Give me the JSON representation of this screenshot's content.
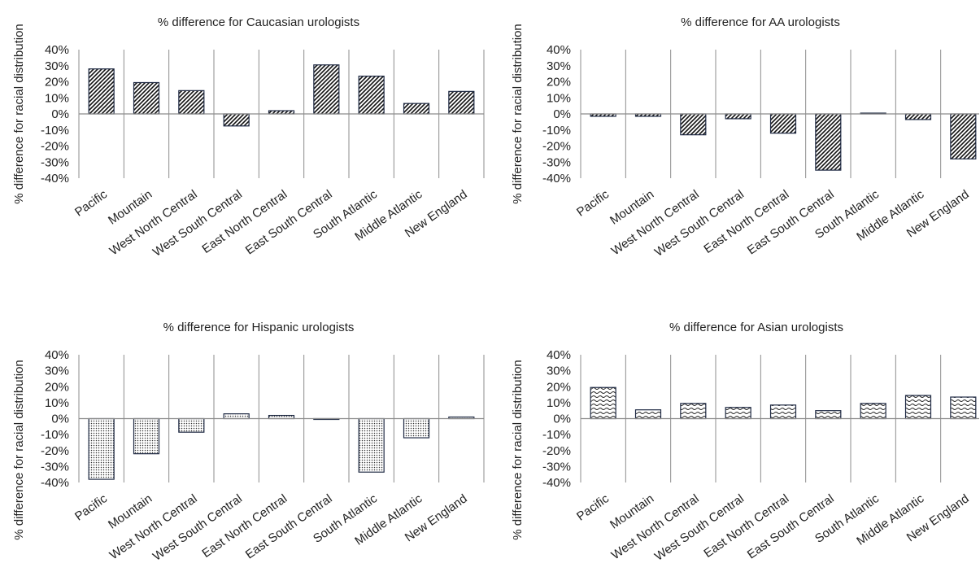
{
  "chart_data": [
    {
      "type": "bar",
      "title": "% difference for Caucasian urologists",
      "ylabel": "% difference for racial distribution",
      "categories": [
        "Pacific",
        "Mountain",
        "West North Central",
        "West South Central",
        "East North Central",
        "East South Central",
        "South Atlantic",
        "Middle Atlantic",
        "New England"
      ],
      "values": [
        28,
        19.5,
        14.5,
        -7.5,
        2,
        30.5,
        23.5,
        6.5,
        14
      ],
      "yticks": [
        "40%",
        "30%",
        "20%",
        "10%",
        "0%",
        "-10%",
        "-20%",
        "-30%",
        "-40%"
      ],
      "ylim": [
        -40,
        40
      ],
      "pattern": "diagonal-hatch",
      "grid": "vertical separators"
    },
    {
      "type": "bar",
      "title": "% difference for AA urologists",
      "ylabel": "% difference for racial distribution",
      "categories": [
        "Pacific",
        "Mountain",
        "West North Central",
        "West South Central",
        "East North Central",
        "East South Central",
        "South Atlantic",
        "Middle Atlantic",
        "New England"
      ],
      "values": [
        -1.5,
        -1.5,
        -13,
        -3,
        -12,
        -35,
        0.5,
        -3.5,
        -28
      ],
      "yticks": [
        "40%",
        "30%",
        "20%",
        "10%",
        "0%",
        "-10%",
        "-20%",
        "-30%",
        "-40%"
      ],
      "ylim": [
        -40,
        40
      ],
      "pattern": "diagonal-hatch",
      "grid": "vertical separators"
    },
    {
      "type": "bar",
      "title": "% difference for Hispanic urologists",
      "ylabel": "% difference for racial distribution",
      "categories": [
        "Pacific",
        "Mountain",
        "West North Central",
        "West South Central",
        "East North Central",
        "East South Central",
        "South Atlantic",
        "Middle Atlantic",
        "New England"
      ],
      "values": [
        -38,
        -22,
        -8.5,
        3,
        2,
        -0.5,
        -33.5,
        -12,
        1
      ],
      "yticks": [
        "40%",
        "30%",
        "20%",
        "10%",
        "0%",
        "-10%",
        "-20%",
        "-30%",
        "-40%"
      ],
      "ylim": [
        -40,
        40
      ],
      "pattern": "dots",
      "grid": "vertical separators"
    },
    {
      "type": "bar",
      "title": "% difference for Asian urologists",
      "ylabel": "% difference for racial distribution",
      "categories": [
        "Pacific",
        "Mountain",
        "West North Central",
        "West South Central",
        "East North Central",
        "East South Central",
        "South Atlantic",
        "Middle Atlantic",
        "New England"
      ],
      "values": [
        19.5,
        5.5,
        9.5,
        7,
        8.5,
        5,
        9.5,
        14.5,
        13.5
      ],
      "yticks": [
        "40%",
        "30%",
        "20%",
        "10%",
        "0%",
        "-10%",
        "-20%",
        "-30%",
        "-40%"
      ],
      "ylim": [
        -40,
        40
      ],
      "pattern": "waves",
      "grid": "vertical separators"
    }
  ],
  "colors": {
    "bar_outline": "#1f2a44",
    "axis": "#8c8c8c",
    "text": "#222222",
    "background": "#ffffff"
  }
}
